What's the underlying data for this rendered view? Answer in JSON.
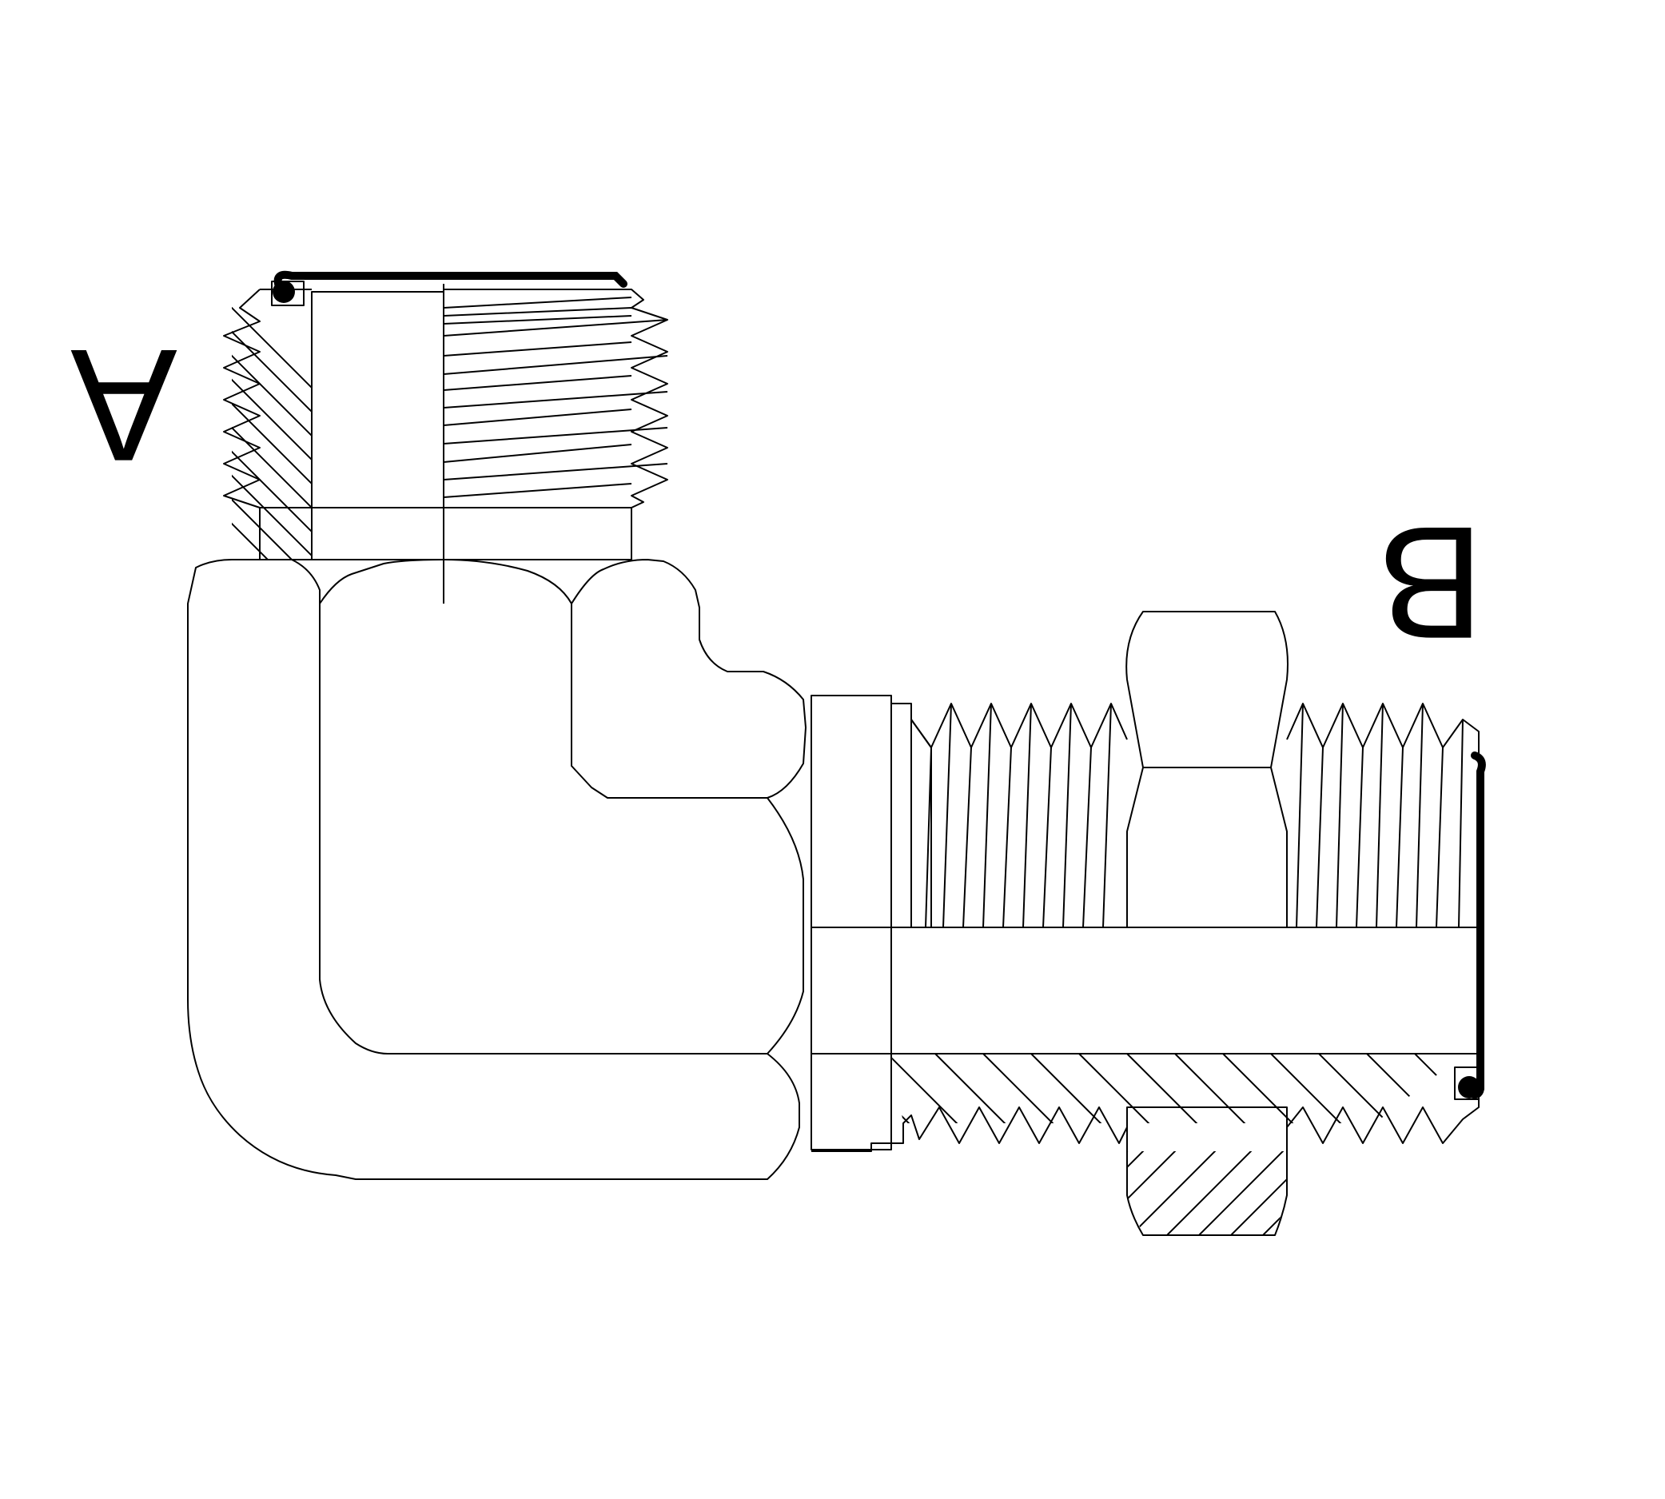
{
  "ports": {
    "a": {
      "label": "A"
    },
    "b": {
      "label": "B"
    }
  },
  "colors": {
    "line": "#000000",
    "background": "#ffffff"
  }
}
